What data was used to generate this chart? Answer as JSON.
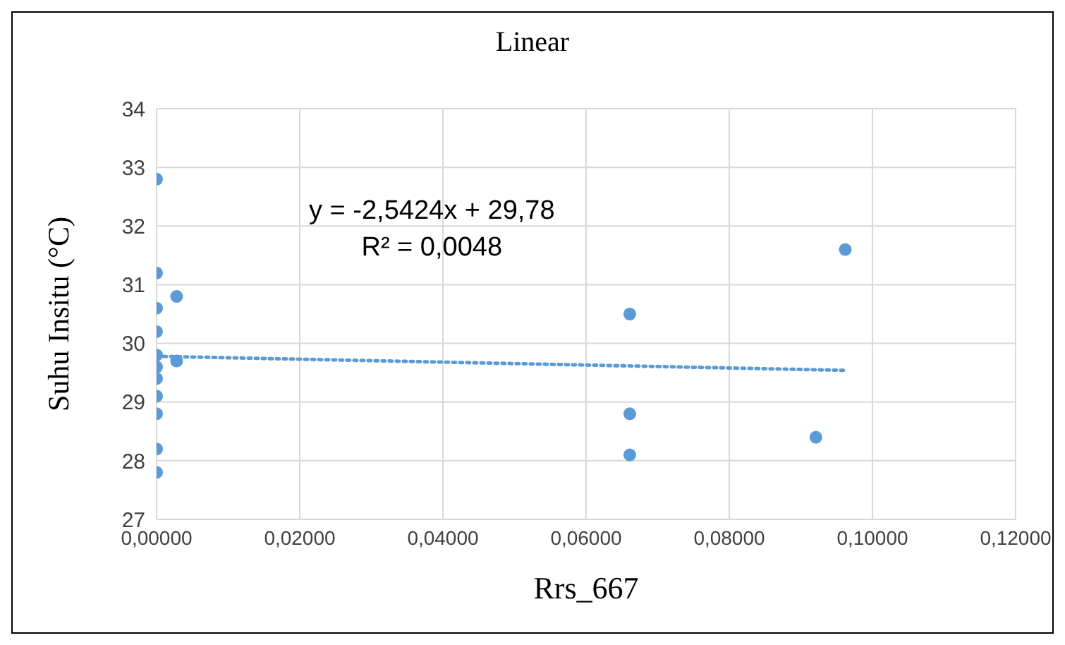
{
  "chart_data": {
    "type": "scatter",
    "title": "Linear",
    "xlabel": "Rrs_667",
    "ylabel": "Suhu Insitu (°C)",
    "annotations": [
      "y = -2,5424x + 29,78",
      "R² = 0,0048"
    ],
    "series": [
      {
        "color": "#5b9bd5",
        "marker": "circle",
        "x": [
          0,
          0,
          0,
          0,
          0,
          0,
          0,
          0,
          0,
          0,
          0,
          0.0028,
          0.0028,
          0.0661,
          0.0661,
          0.0661,
          0.0921,
          0.0962
        ],
        "values": [
          32.8,
          31.2,
          30.6,
          30.2,
          29.8,
          29.6,
          29.4,
          29.1,
          28.8,
          28.2,
          27.8,
          30.8,
          29.7,
          30.5,
          28.8,
          28.1,
          28.4,
          31.6
        ]
      },
      {
        "type": "line",
        "color": "#5b9bd5",
        "line_style": "dotted",
        "marker": "none",
        "x": [
          0,
          0.0962
        ],
        "values": [
          29.78,
          29.54
        ]
      }
    ],
    "xlim": [
      0,
      0.12
    ],
    "xticks": [
      {
        "value": 0,
        "label": "0,00000"
      },
      {
        "value": 0.02,
        "label": "0,02000"
      },
      {
        "value": 0.04,
        "label": "0,04000"
      },
      {
        "value": 0.06,
        "label": "0,06000"
      },
      {
        "value": 0.08,
        "label": "0,08000"
      },
      {
        "value": 0.1,
        "label": "0,10000"
      },
      {
        "value": 0.12,
        "label": "0,12000"
      }
    ],
    "ylim": [
      27,
      34
    ],
    "yticks": [
      27,
      28,
      29,
      30,
      31,
      32,
      33,
      34
    ],
    "grid": true
  }
}
